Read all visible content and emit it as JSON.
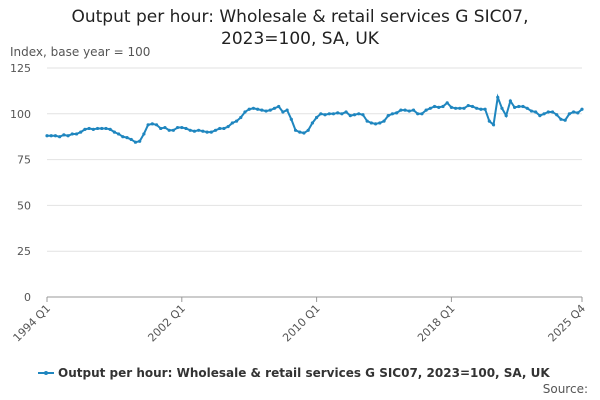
{
  "chart_data": {
    "type": "line",
    "title": "Output per hour: Wholesale & retail services G SIC07, 2023=100, SA, UK",
    "y_label": "Index, base year = 100",
    "source": "Source:",
    "categories": [
      "1994 Q1",
      null,
      null,
      null,
      null,
      null,
      null,
      null,
      null,
      null,
      null,
      null,
      null,
      null,
      null,
      null,
      null,
      null,
      null,
      null,
      null,
      null,
      null,
      null,
      null,
      null,
      null,
      null,
      null,
      null,
      null,
      null,
      "2002 Q1",
      null,
      null,
      null,
      null,
      null,
      null,
      null,
      null,
      null,
      null,
      null,
      null,
      null,
      null,
      null,
      null,
      null,
      null,
      null,
      null,
      null,
      null,
      null,
      null,
      null,
      null,
      null,
      null,
      null,
      null,
      null,
      "2010 Q1",
      null,
      null,
      null,
      null,
      null,
      null,
      null,
      null,
      null,
      null,
      null,
      null,
      null,
      null,
      null,
      null,
      null,
      null,
      null,
      null,
      null,
      null,
      null,
      null,
      null,
      null,
      null,
      null,
      null,
      null,
      null,
      "2018 Q1",
      null,
      null,
      null,
      null,
      null,
      null,
      null,
      null,
      null,
      null,
      null,
      null,
      null,
      null,
      null,
      null,
      null,
      null,
      null,
      null,
      null,
      null,
      null,
      null,
      null,
      null,
      null,
      null,
      null,
      null,
      "2025 Q4"
    ],
    "series": [
      {
        "name": "Output per hour: Wholesale & retail services G SIC07, 2023=100, SA, UK",
        "color": "#1f86bf",
        "values": [
          88,
          88,
          88,
          87.5,
          88.5,
          88,
          89,
          89,
          90,
          91.5,
          92,
          91.5,
          92,
          92,
          92,
          91.5,
          90,
          89,
          87.5,
          87,
          86,
          84.5,
          85,
          89,
          94,
          94.5,
          94,
          92,
          92.5,
          91,
          91,
          92.5,
          92.5,
          92,
          91,
          90.5,
          91,
          90.5,
          90,
          90,
          91,
          92,
          92,
          93,
          95,
          96,
          98,
          101,
          102.5,
          103,
          102.5,
          102,
          101.5,
          102,
          103,
          104,
          101,
          102,
          97,
          91,
          90,
          89.5,
          91,
          95,
          98,
          100,
          99.5,
          100,
          100,
          100.5,
          100,
          101,
          99,
          99.5,
          100,
          99.5,
          96,
          95,
          94.5,
          95,
          96,
          99,
          100,
          100.5,
          102,
          102,
          101.5,
          102,
          100,
          100,
          102,
          103,
          104,
          103.5,
          104,
          106,
          103.5,
          103,
          103,
          103,
          104.5,
          104,
          103,
          102.5,
          102.5,
          96,
          94,
          109,
          103,
          99,
          107,
          103.5,
          104,
          104,
          103,
          101.5,
          101,
          99,
          100,
          101,
          101,
          99.5,
          97,
          96.5,
          100,
          101,
          100.5,
          102.5
        ]
      }
    ],
    "ylim": [
      0,
      125
    ],
    "yticks": [
      0,
      25,
      50,
      75,
      100,
      125
    ],
    "grid": true
  }
}
